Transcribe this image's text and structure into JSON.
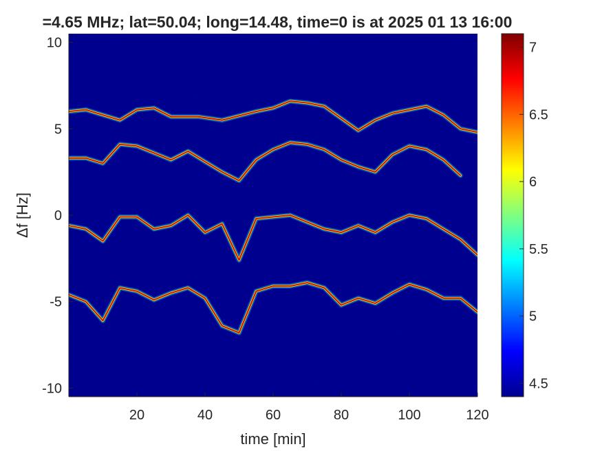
{
  "chart_data": {
    "type": "heatmap",
    "title": "=4.65 MHz;  lat=50.04; long=14.48, time=0 is at 2025 01 13 16:00",
    "xlabel": "time [min]",
    "ylabel": "Δf [Hz]",
    "xlim": [
      0,
      120
    ],
    "ylim": [
      -10.5,
      10.5
    ],
    "xticks": [
      20,
      40,
      60,
      80,
      100,
      120
    ],
    "xtick_labels": [
      "20",
      "40",
      "60",
      "80",
      "100",
      "120"
    ],
    "yticks": [
      10,
      5,
      0,
      -5,
      -10
    ],
    "ytick_labels": [
      "10",
      "5",
      "0",
      "-5",
      "-10"
    ],
    "colormap": "jet",
    "clim": [
      4.4,
      7.1
    ],
    "colorbar_ticks": [
      4.5,
      5,
      5.5,
      6,
      6.5,
      7
    ],
    "colorbar_tick_labels": [
      "4.5",
      "5",
      "5.5",
      "6",
      "6.5",
      "7"
    ],
    "background_color": "#00008f",
    "traces": [
      {
        "name": "",
        "points": [
          [
            0,
            6.0
          ],
          [
            5,
            6.1
          ],
          [
            10,
            5.8
          ],
          [
            15,
            5.5
          ],
          [
            20,
            6.1
          ],
          [
            25,
            6.2
          ],
          [
            30,
            5.7
          ],
          [
            38,
            5.7
          ],
          [
            45,
            5.5
          ],
          [
            55,
            6.0
          ],
          [
            60,
            6.2
          ],
          [
            65,
            6.6
          ],
          [
            70,
            6.5
          ],
          [
            75,
            6.3
          ],
          [
            80,
            5.6
          ],
          [
            85,
            4.9
          ],
          [
            90,
            5.5
          ],
          [
            95,
            5.9
          ],
          [
            100,
            6.1
          ],
          [
            105,
            6.3
          ],
          [
            110,
            5.8
          ],
          [
            115,
            5.0
          ],
          [
            120,
            4.8
          ]
        ]
      },
      {
        "name": "",
        "points": [
          [
            0,
            3.3
          ],
          [
            5,
            3.3
          ],
          [
            10,
            3.0
          ],
          [
            15,
            4.1
          ],
          [
            20,
            4.0
          ],
          [
            25,
            3.6
          ],
          [
            30,
            3.2
          ],
          [
            35,
            3.7
          ],
          [
            40,
            3.1
          ],
          [
            45,
            2.5
          ],
          [
            50,
            2.0
          ],
          [
            55,
            3.2
          ],
          [
            60,
            3.8
          ],
          [
            65,
            4.2
          ],
          [
            70,
            4.1
          ],
          [
            75,
            3.8
          ],
          [
            80,
            3.2
          ],
          [
            85,
            2.8
          ],
          [
            90,
            2.5
          ],
          [
            95,
            3.5
          ],
          [
            100,
            4.0
          ],
          [
            105,
            3.8
          ],
          [
            110,
            3.2
          ],
          [
            115,
            2.3
          ]
        ]
      },
      {
        "name": "",
        "points": [
          [
            0,
            -0.6
          ],
          [
            5,
            -0.8
          ],
          [
            10,
            -1.5
          ],
          [
            15,
            -0.1
          ],
          [
            20,
            -0.1
          ],
          [
            25,
            -0.8
          ],
          [
            30,
            -0.6
          ],
          [
            35,
            0.0
          ],
          [
            40,
            -1.0
          ],
          [
            45,
            -0.5
          ],
          [
            50,
            -2.6
          ],
          [
            55,
            -0.2
          ],
          [
            60,
            -0.1
          ],
          [
            65,
            0.0
          ],
          [
            70,
            -0.4
          ],
          [
            75,
            -0.8
          ],
          [
            80,
            -1.0
          ],
          [
            85,
            -0.6
          ],
          [
            90,
            -1.0
          ],
          [
            95,
            -0.4
          ],
          [
            100,
            0.0
          ],
          [
            105,
            -0.2
          ],
          [
            110,
            -0.8
          ],
          [
            115,
            -1.4
          ],
          [
            120,
            -2.3
          ]
        ]
      },
      {
        "name": "",
        "points": [
          [
            0,
            -4.6
          ],
          [
            5,
            -5.0
          ],
          [
            10,
            -6.1
          ],
          [
            15,
            -4.2
          ],
          [
            20,
            -4.4
          ],
          [
            25,
            -4.9
          ],
          [
            30,
            -4.5
          ],
          [
            35,
            -4.2
          ],
          [
            40,
            -4.8
          ],
          [
            45,
            -6.4
          ],
          [
            50,
            -6.8
          ],
          [
            55,
            -4.4
          ],
          [
            60,
            -4.1
          ],
          [
            65,
            -4.1
          ],
          [
            70,
            -3.9
          ],
          [
            75,
            -4.2
          ],
          [
            80,
            -5.2
          ],
          [
            85,
            -4.8
          ],
          [
            90,
            -5.1
          ],
          [
            95,
            -4.5
          ],
          [
            100,
            -4.0
          ],
          [
            105,
            -4.3
          ],
          [
            110,
            -4.8
          ],
          [
            115,
            -4.8
          ],
          [
            120,
            -5.6
          ]
        ]
      }
    ]
  }
}
